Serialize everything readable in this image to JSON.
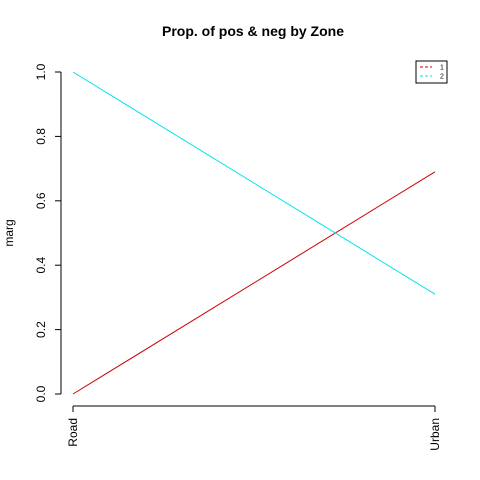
{
  "chart_data": {
    "type": "line",
    "title": "Prop. of pos & neg by Zone",
    "xlabel": "",
    "ylabel": "marg",
    "categories": [
      "Road",
      "Urban"
    ],
    "ylim": [
      0,
      1
    ],
    "yticks": [
      "0.0",
      "0.2",
      "0.4",
      "0.6",
      "0.8",
      "1.0"
    ],
    "yticks_values": [
      0,
      0.2,
      0.4,
      0.6,
      0.8,
      1.0
    ],
    "grid": false,
    "legend_position": "top-right",
    "series": [
      {
        "name": "1",
        "values": [
          0.0,
          0.69
        ],
        "color": "#cc0000",
        "dash": "dashed"
      },
      {
        "name": "2",
        "values": [
          1.0,
          0.31
        ],
        "color": "#00e5ee",
        "dash": "dashed"
      }
    ]
  }
}
